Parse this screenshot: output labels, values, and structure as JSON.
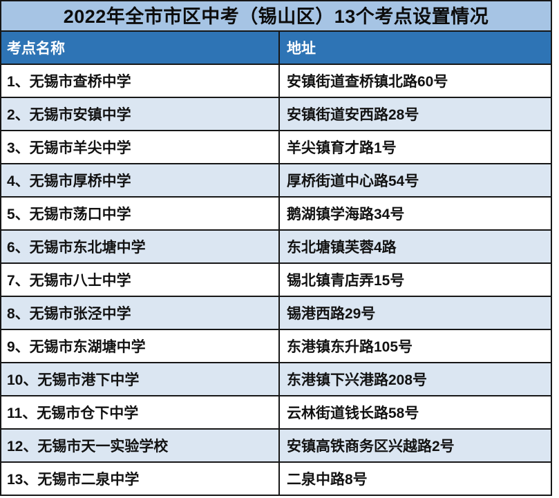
{
  "page": {
    "title_bar": "2022年全市市区中考（锡山区）13个考点设置情况"
  },
  "table": {
    "columns": [
      "考点名称",
      "地址"
    ],
    "rows": [
      {
        "name": "1、无锡市查桥中学",
        "address": "安镇街道查桥镇北路60号"
      },
      {
        "name": "2、无锡市安镇中学",
        "address": "安镇街道安西路28号"
      },
      {
        "name": "3、无锡市羊尖中学",
        "address": "羊尖镇育才路1号"
      },
      {
        "name": "4、无锡市厚桥中学",
        "address": "厚桥街道中心路54号"
      },
      {
        "name": "5、无锡市荡口中学",
        "address": "鹅湖镇学海路34号"
      },
      {
        "name": "6、无锡市东北塘中学",
        "address": "东北塘镇芙蓉4路"
      },
      {
        "name": "7、无锡市八士中学",
        "address": "锡北镇青店弄15号"
      },
      {
        "name": "8、无锡市张泾中学",
        "address": "锡港西路29号"
      },
      {
        "name": "9、无锡市东湖塘中学",
        "address": "东港镇东升路105号"
      },
      {
        "name": "10、无锡市港下中学",
        "address": "东港镇下兴港路208号"
      },
      {
        "name": "11、无锡市仓下中学",
        "address": "云林街道钱长路58号"
      },
      {
        "name": "12、无锡市天一实验学校",
        "address": "安镇高铁商务区兴越路2号"
      },
      {
        "name": "13、无锡市二泉中学",
        "address": "二泉中路8号"
      }
    ]
  },
  "colors": {
    "title_bar_bg": "#a6c4e4",
    "header_bg": "#2e74b5",
    "header_text": "#ffffff",
    "row_bg": "#ffffff",
    "row_alt_bg": "#dbe6f2",
    "border": "#161616",
    "text": "#121212"
  }
}
